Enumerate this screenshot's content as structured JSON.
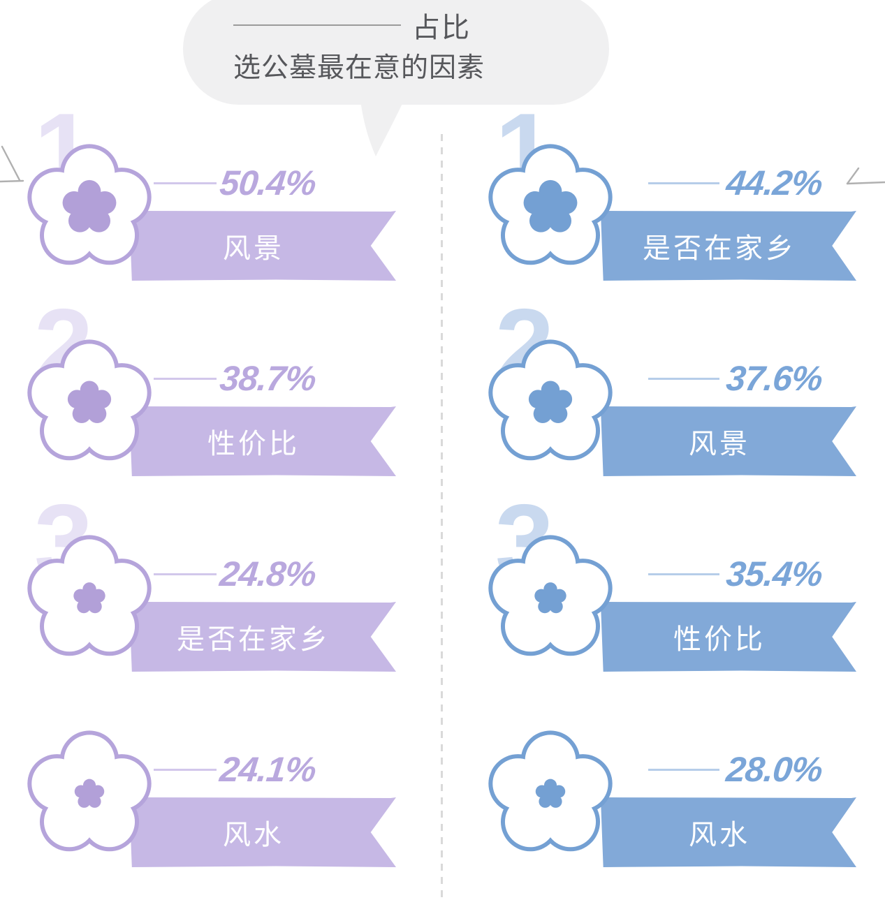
{
  "title": {
    "tag": "占比",
    "question": "选公墓最在意的因素"
  },
  "style": {
    "bubble_bg": "#f0f0f1",
    "title_color": "#56575b",
    "rule_color": "#9b9b9b",
    "divider_color": "#d9d9d9",
    "background": "#ffffff"
  },
  "columns": [
    {
      "name": "purple-ranking",
      "colors": {
        "ribbon": "#c6b8e5",
        "stroke": "#b5a4db",
        "inner": "#b2a0d8",
        "percent": "#b9a8de",
        "watermark": "#e7e2f5",
        "line": "#d2c7eb"
      },
      "items": [
        {
          "rank": "1",
          "percent": "50.4%",
          "label": "风景"
        },
        {
          "rank": "2",
          "percent": "38.7%",
          "label": "性价比"
        },
        {
          "rank": "3",
          "percent": "24.8%",
          "label": "是否在家乡"
        },
        {
          "rank": "",
          "percent": "24.1%",
          "label": "风水"
        }
      ]
    },
    {
      "name": "blue-ranking",
      "colors": {
        "ribbon": "#82a9d8",
        "stroke": "#74a0d3",
        "inner": "#74a0d3",
        "percent": "#7aa5d8",
        "watermark": "#c9d9ef",
        "line": "#b6cde9"
      },
      "items": [
        {
          "rank": "1",
          "percent": "44.2%",
          "label": "是否在家乡"
        },
        {
          "rank": "2",
          "percent": "37.6%",
          "label": "风景"
        },
        {
          "rank": "3",
          "percent": "35.4%",
          "label": "性价比"
        },
        {
          "rank": "",
          "percent": "28.0%",
          "label": "风水"
        }
      ]
    }
  ],
  "chart_data": {
    "type": "bar",
    "title": "选公墓最在意的因素 占比",
    "unit": "%",
    "grid": false,
    "legend_position": "none",
    "series": [
      {
        "name": "紫色榜单(左)",
        "categories": [
          "风景",
          "性价比",
          "是否在家乡",
          "风水"
        ],
        "values": [
          50.4,
          38.7,
          24.8,
          24.1
        ]
      },
      {
        "name": "蓝色榜单(右)",
        "categories": [
          "是否在家乡",
          "风景",
          "性价比",
          "风水"
        ],
        "values": [
          44.2,
          37.6,
          35.4,
          28.0
        ]
      }
    ]
  }
}
